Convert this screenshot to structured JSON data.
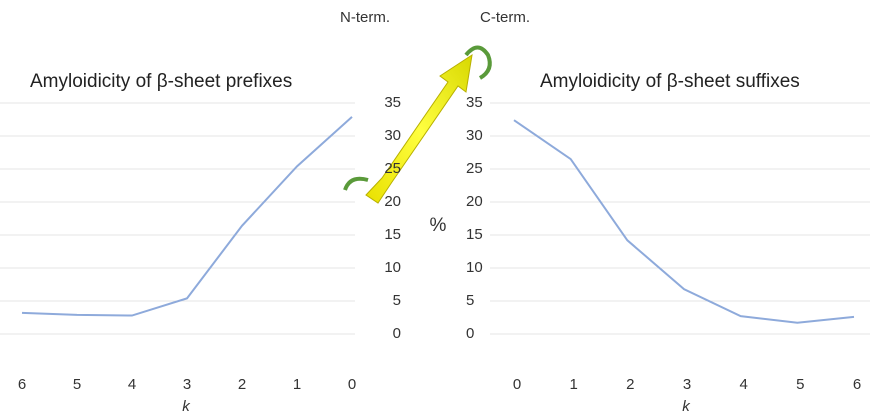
{
  "chart_data": [
    {
      "type": "line",
      "title": "Amyloidicity of β-sheet prefixes",
      "xlabel": "k",
      "ylabel": "%",
      "annotations": [
        "N-term.",
        "C-term."
      ],
      "categories": [
        "6",
        "5",
        "4",
        "3",
        "2",
        "1",
        "0"
      ],
      "values": [
        3.2,
        2.9,
        2.8,
        5.4,
        16.4,
        25.4,
        32.9
      ],
      "color": "#8eaadb",
      "ylim": [
        0,
        35
      ],
      "yticks": [
        0,
        5,
        10,
        15,
        20,
        25,
        30,
        35
      ],
      "grid": true
    },
    {
      "type": "line",
      "title": "Amyloidicity of β-sheet suffixes",
      "xlabel": "k",
      "categories": [
        "0",
        "1",
        "2",
        "3",
        "4",
        "5",
        "6"
      ],
      "values": [
        32.4,
        26.5,
        14.2,
        6.8,
        2.7,
        1.7,
        2.6
      ],
      "color": "#8eaadb",
      "ylim": [
        0,
        35
      ],
      "yticks": [
        0,
        5,
        10,
        15,
        20,
        25,
        30,
        35
      ],
      "grid": true
    }
  ]
}
